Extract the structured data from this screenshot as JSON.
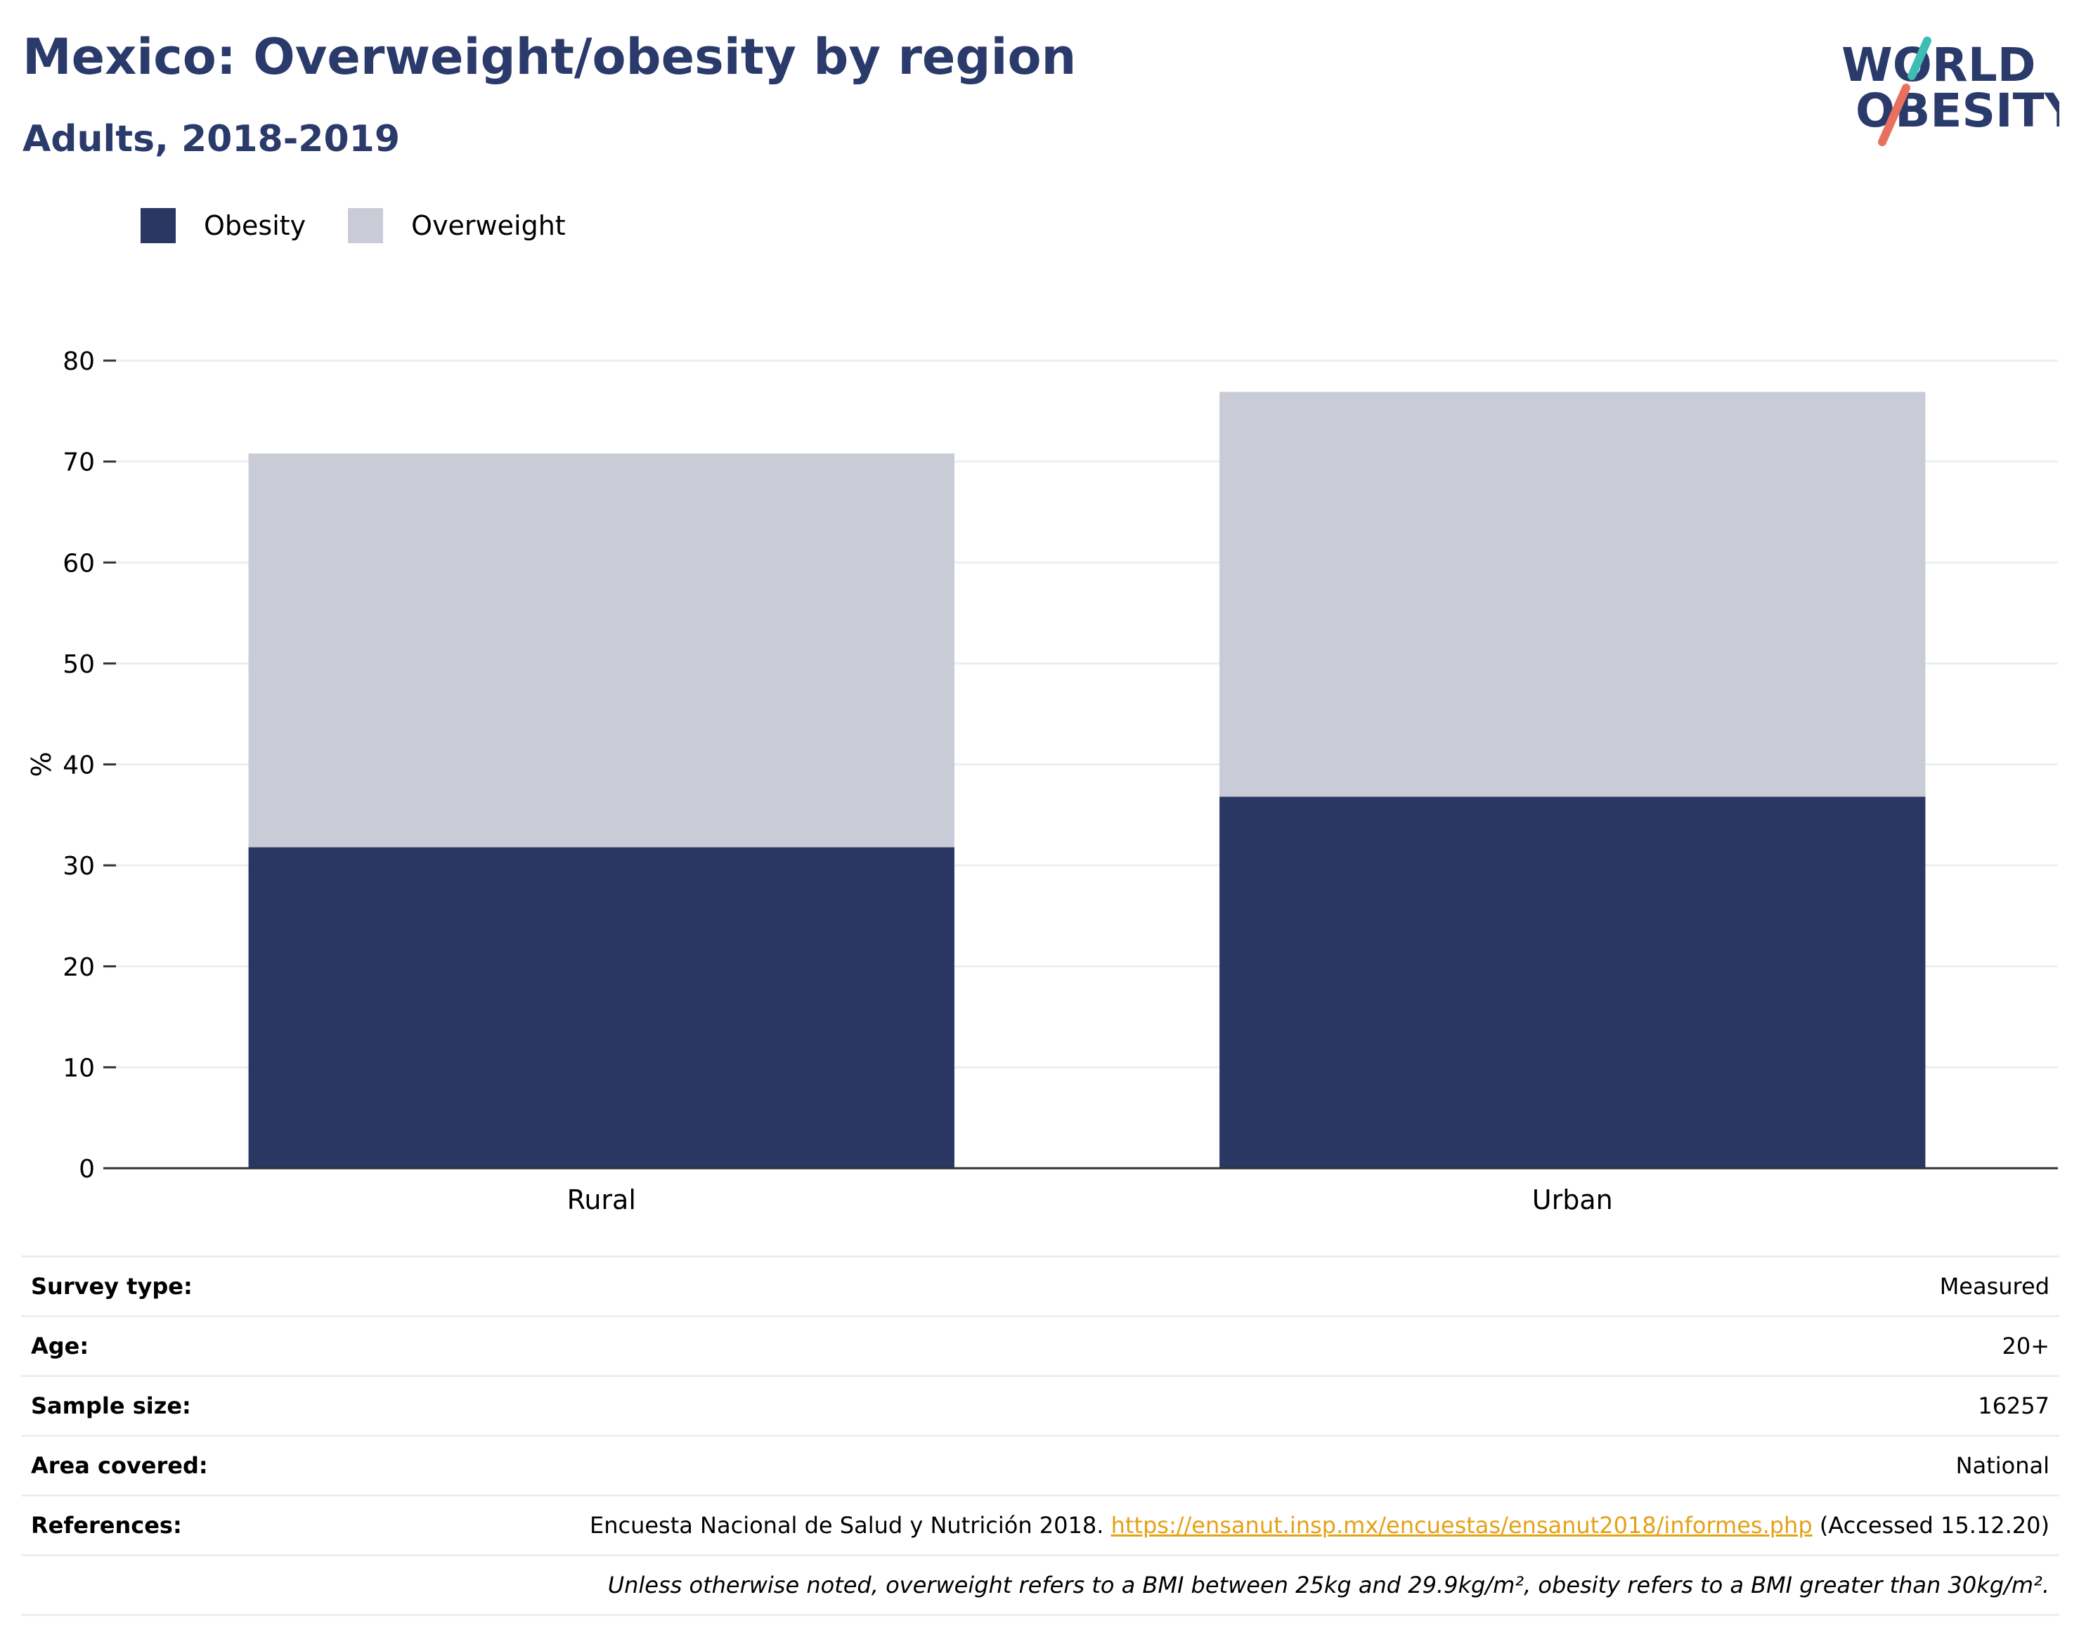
{
  "header": {
    "title": "Mexico: Overweight/obesity by region",
    "subtitle": "Adults, 2018-2019"
  },
  "logo": {
    "line1": "WORLD",
    "line2": "OBESITY",
    "text_color": "#2a3a6b",
    "slash_colors": [
      "#3dbdb4",
      "#e8705c"
    ]
  },
  "chart_data": {
    "type": "bar",
    "stacked": true,
    "categories": [
      "Rural",
      "Urban"
    ],
    "series": [
      {
        "name": "Obesity",
        "values": [
          31.8,
          36.8
        ],
        "color": "#2a3763"
      },
      {
        "name": "Overweight",
        "values": [
          39.0,
          40.1
        ],
        "color": "#c9ccd7"
      }
    ],
    "ylabel": "%",
    "ylim": [
      0,
      80
    ],
    "yticks": [
      0,
      10,
      20,
      30,
      40,
      50,
      60,
      70,
      80
    ],
    "grid": true,
    "legend_position": "top-left"
  },
  "info": {
    "survey_type_label": "Survey type:",
    "survey_type_value": "Measured",
    "age_label": "Age:",
    "age_value": "20+",
    "sample_size_label": "Sample size:",
    "sample_size_value": "16257",
    "area_label": "Area covered:",
    "area_value": "National",
    "references_label": "References:",
    "references_prefix": "Encuesta Nacional de Salud y Nutrición 2018.",
    "references_link": "https://ensanut.insp.mx/encuestas/ensanut2018/informes.php",
    "references_suffix": "(Accessed 15.12.20)",
    "note": "Unless otherwise noted, overweight refers to a BMI between 25kg and 29.9kg/m², obesity refers to a BMI greater than 30kg/m²."
  }
}
